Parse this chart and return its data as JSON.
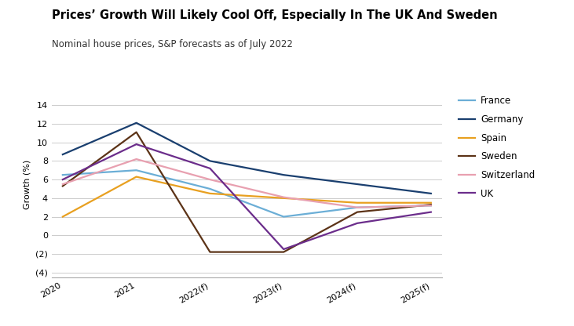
{
  "title": "Prices’ Growth Will Likely Cool Off, Especially In The UK And Sweden",
  "subtitle": "Nominal house prices, S&P forecasts as of July 2022",
  "ylabel": "Growth (%)",
  "x_labels": [
    "2020",
    "2021",
    "2022(f)",
    "2023(f)",
    "2024(f)",
    "2025(f)"
  ],
  "ylim": [
    -4.5,
    15.5
  ],
  "yticks": [
    -4,
    -2,
    0,
    2,
    4,
    6,
    8,
    10,
    12,
    14
  ],
  "ytick_labels": [
    "(4)",
    "(2)",
    "0",
    "2",
    "4",
    "6",
    "8",
    "10",
    "12",
    "14"
  ],
  "series": [
    {
      "name": "France",
      "color": "#6baed6",
      "values": [
        6.5,
        7.0,
        5.0,
        2.0,
        3.0,
        3.2
      ]
    },
    {
      "name": "Germany",
      "color": "#1a3f6f",
      "values": [
        8.7,
        12.1,
        8.0,
        6.5,
        5.5,
        4.5
      ]
    },
    {
      "name": "Spain",
      "color": "#e8a020",
      "values": [
        2.0,
        6.3,
        4.5,
        4.0,
        3.5,
        3.5
      ]
    },
    {
      "name": "Sweden",
      "color": "#5c3317",
      "values": [
        5.3,
        11.1,
        -1.8,
        -1.8,
        2.5,
        3.3
      ]
    },
    {
      "name": "Switzerland",
      "color": "#e8a0b0",
      "values": [
        5.5,
        8.2,
        6.0,
        4.1,
        3.0,
        3.2
      ]
    },
    {
      "name": "UK",
      "color": "#6b2d8b",
      "values": [
        6.0,
        9.8,
        7.2,
        -1.5,
        1.3,
        2.5
      ]
    }
  ],
  "background_color": "#ffffff",
  "grid_color": "#cccccc",
  "title_fontsize": 10.5,
  "subtitle_fontsize": 8.5,
  "axis_label_fontsize": 8,
  "tick_fontsize": 8,
  "legend_fontsize": 8.5,
  "linewidth": 1.6
}
